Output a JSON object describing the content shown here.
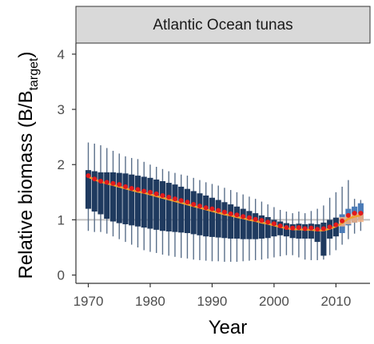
{
  "chart_data": {
    "type": "box",
    "panel_title": "Atlantic Ocean tunas",
    "xlabel": "Year",
    "ylabel_main": "Relative biomass (B/B",
    "ylabel_sub": "target",
    "ylabel_close": ")",
    "xlim": [
      1968,
      2015.5
    ],
    "ylim": [
      -0.15,
      4.2
    ],
    "x_ticks": [
      1970,
      1980,
      1990,
      2000,
      2010
    ],
    "y_ticks": [
      0,
      1,
      2,
      3,
      4
    ],
    "reference_line": 1,
    "colors": {
      "box": "#1f3a5f",
      "box_recent": "#4a7bb7",
      "whisker": "#5a6f8a",
      "median": "#e31a1c",
      "mean_line": "#f0a030",
      "recent_band": "#f4b183",
      "reference": "#c0c0c0",
      "strip": "#d9d9d9"
    },
    "years": [
      1970,
      1971,
      1972,
      1973,
      1974,
      1975,
      1976,
      1977,
      1978,
      1979,
      1980,
      1981,
      1982,
      1983,
      1984,
      1985,
      1986,
      1987,
      1988,
      1989,
      1990,
      1991,
      1992,
      1993,
      1994,
      1995,
      1996,
      1997,
      1998,
      1999,
      2000,
      2001,
      2002,
      2003,
      2004,
      2005,
      2006,
      2007,
      2008,
      2009,
      2010,
      2011,
      2012,
      2013,
      2014
    ],
    "median": [
      1.8,
      1.74,
      1.7,
      1.68,
      1.66,
      1.64,
      1.6,
      1.57,
      1.55,
      1.52,
      1.5,
      1.47,
      1.44,
      1.41,
      1.38,
      1.35,
      1.32,
      1.28,
      1.25,
      1.22,
      1.2,
      1.17,
      1.14,
      1.11,
      1.09,
      1.06,
      1.04,
      1.01,
      0.99,
      0.96,
      0.93,
      0.89,
      0.86,
      0.85,
      0.86,
      0.84,
      0.85,
      0.83,
      0.84,
      0.87,
      0.91,
      0.98,
      1.08,
      1.12,
      1.12
    ],
    "q1": [
      1.2,
      1.15,
      1.1,
      1.02,
      0.97,
      0.94,
      0.92,
      0.9,
      0.88,
      0.86,
      0.84,
      0.82,
      0.8,
      0.79,
      0.78,
      0.77,
      0.76,
      0.74,
      0.72,
      0.7,
      0.69,
      0.68,
      0.67,
      0.66,
      0.66,
      0.65,
      0.65,
      0.65,
      0.66,
      0.67,
      0.7,
      0.72,
      0.7,
      0.67,
      0.66,
      0.66,
      0.66,
      0.6,
      0.35,
      0.66,
      0.7,
      0.76,
      0.9,
      0.95,
      1.0
    ],
    "q3": [
      1.9,
      1.88,
      1.86,
      1.86,
      1.86,
      1.85,
      1.84,
      1.82,
      1.8,
      1.78,
      1.76,
      1.73,
      1.7,
      1.67,
      1.64,
      1.6,
      1.56,
      1.52,
      1.48,
      1.44,
      1.4,
      1.36,
      1.32,
      1.28,
      1.24,
      1.2,
      1.16,
      1.12,
      1.08,
      1.05,
      1.0,
      0.97,
      0.94,
      0.92,
      0.93,
      0.92,
      0.93,
      0.92,
      0.95,
      1.0,
      1.04,
      1.1,
      1.2,
      1.24,
      1.3
    ],
    "lower_whisker": [
      0.8,
      0.78,
      0.78,
      0.75,
      0.7,
      0.65,
      0.6,
      0.55,
      0.5,
      0.45,
      0.42,
      0.4,
      0.37,
      0.35,
      0.33,
      0.31,
      0.3,
      0.28,
      0.27,
      0.26,
      0.25,
      0.25,
      0.24,
      0.24,
      0.24,
      0.25,
      0.26,
      0.27,
      0.28,
      0.3,
      0.32,
      0.34,
      0.36,
      0.36,
      0.32,
      0.28,
      0.27,
      0.27,
      0.28,
      0.36,
      0.45,
      0.55,
      0.65,
      0.75,
      0.8
    ],
    "upper_whisker": [
      2.4,
      2.38,
      2.35,
      2.3,
      2.25,
      2.2,
      2.15,
      2.12,
      2.1,
      2.05,
      2.0,
      1.96,
      1.92,
      1.88,
      1.85,
      1.82,
      1.8,
      1.76,
      1.72,
      1.68,
      1.65,
      1.62,
      1.58,
      1.54,
      1.5,
      1.46,
      1.42,
      1.38,
      1.33,
      1.28,
      1.23,
      1.18,
      1.15,
      1.12,
      1.15,
      1.12,
      1.16,
      1.2,
      1.26,
      1.4,
      1.5,
      1.6,
      1.72,
      1.38,
      1.36
    ],
    "mean": [
      1.78,
      1.73,
      1.69,
      1.66,
      1.63,
      1.6,
      1.57,
      1.54,
      1.51,
      1.49,
      1.46,
      1.43,
      1.4,
      1.37,
      1.34,
      1.31,
      1.28,
      1.25,
      1.22,
      1.19,
      1.16,
      1.13,
      1.1,
      1.08,
      1.05,
      1.03,
      1.0,
      0.98,
      0.95,
      0.93,
      0.9,
      0.87,
      0.85,
      0.83,
      0.83,
      0.82,
      0.82,
      0.81,
      0.81,
      0.84,
      0.88,
      0.94,
      1.02,
      1.06,
      1.08
    ],
    "recent_band": {
      "start_year": 2010.5,
      "years": [
        2011,
        2012,
        2013,
        2014
      ],
      "low": [
        0.88,
        0.92,
        0.95,
        0.96
      ],
      "high": [
        1.05,
        1.1,
        1.12,
        1.12
      ]
    }
  }
}
